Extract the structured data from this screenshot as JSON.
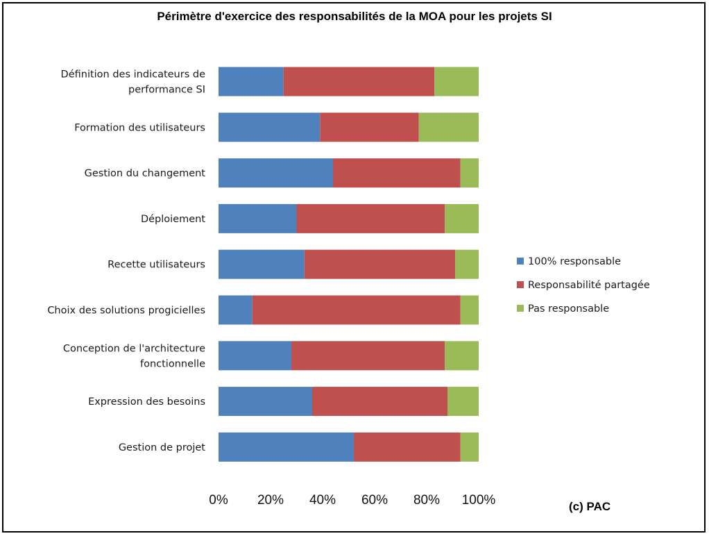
{
  "chart_data": {
    "type": "bar",
    "orientation": "horizontal",
    "stacked": true,
    "title": "Périmètre d'exercice des responsabilités de la MOA pour les projets SI",
    "credit": "(c) PAC",
    "categories": [
      [
        "Définition des indicateurs de",
        "performance SI"
      ],
      [
        "Formation des utilisateurs"
      ],
      [
        "Gestion du changement"
      ],
      [
        "Déploiement"
      ],
      [
        "Recette utilisateurs"
      ],
      [
        "Choix des solutions progicielles"
      ],
      [
        "Conception de  l'architecture",
        "fonctionnelle"
      ],
      [
        "Expression des besoins"
      ],
      [
        "Gestion de projet"
      ]
    ],
    "series": [
      {
        "name": "100% responsable",
        "color": "#4f81bd",
        "values": [
          25,
          39,
          44,
          30,
          33,
          13,
          28,
          36,
          52
        ]
      },
      {
        "name": "Responsabilité partagée",
        "color": "#c0504d",
        "values": [
          58,
          38,
          49,
          57,
          58,
          80,
          59,
          52,
          41
        ]
      },
      {
        "name": "Pas responsable",
        "color": "#9bbb59",
        "values": [
          17,
          23,
          7,
          13,
          9,
          7,
          13,
          12,
          7
        ]
      }
    ],
    "xlim": [
      0,
      100
    ],
    "ticks": [
      "0%",
      "20%",
      "40%",
      "60%",
      "80%",
      "100%"
    ],
    "grid": false,
    "legend": "right"
  }
}
